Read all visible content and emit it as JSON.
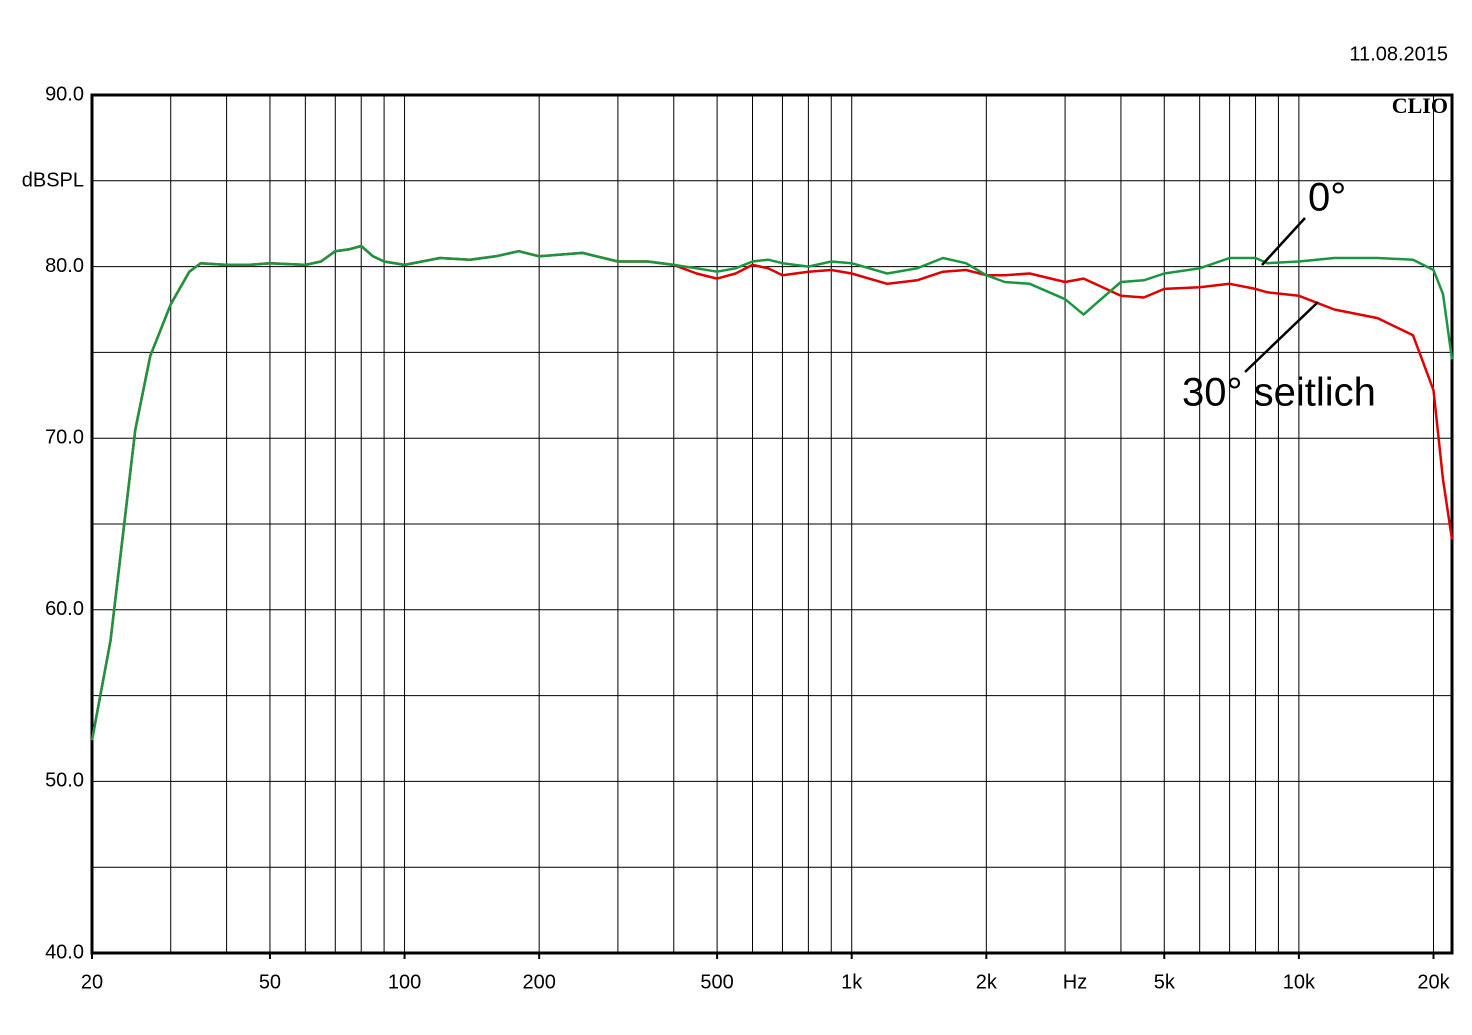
{
  "chart_data": {
    "type": "line",
    "date": "11.08.2015",
    "logo": "CLIO",
    "y_label": "dBSPL",
    "x_label": "Hz",
    "log_x": true,
    "grid": true,
    "xlim": [
      20,
      22000
    ],
    "ylim": [
      40,
      90
    ],
    "xticks": [
      20,
      50,
      100,
      200,
      500,
      {
        "value": 1000,
        "label": "1k"
      },
      {
        "value": 2000,
        "label": "2k"
      },
      {
        "value": 5000,
        "label": "5k"
      },
      {
        "value": 10000,
        "label": "10k"
      },
      {
        "value": 20000,
        "label": "20k"
      }
    ],
    "xminor": [
      30,
      40,
      60,
      70,
      80,
      90,
      300,
      400,
      600,
      700,
      800,
      900,
      3000,
      4000,
      6000,
      7000,
      8000,
      9000
    ],
    "yticks": [
      {
        "value": 40,
        "label": "40.0"
      },
      {
        "value": 50,
        "label": "50.0"
      },
      {
        "value": 60,
        "label": "60.0"
      },
      {
        "value": 70,
        "label": "70.0"
      },
      {
        "value": 80,
        "label": "80.0"
      },
      {
        "value": 90,
        "label": "90.0"
      }
    ],
    "yminor": [
      45,
      55,
      65,
      75,
      85
    ],
    "x": [
      20,
      22,
      25,
      27,
      30,
      33,
      35,
      40,
      45,
      50,
      60,
      65,
      70,
      75,
      80,
      85,
      90,
      100,
      120,
      140,
      160,
      180,
      200,
      250,
      300,
      350,
      400,
      450,
      500,
      550,
      600,
      650,
      700,
      800,
      900,
      1000,
      1200,
      1400,
      1600,
      1800,
      2000,
      2200,
      2500,
      3000,
      3300,
      3500,
      4000,
      4500,
      5000,
      6000,
      7000,
      8000,
      8500,
      10000,
      12000,
      15000,
      18000,
      20000,
      21000,
      22000
    ],
    "series": [
      {
        "name": "30° seitlich",
        "color": "#e00000",
        "values": [
          52.4,
          58.2,
          70.5,
          74.8,
          77.8,
          79.7,
          80.2,
          80.1,
          80.1,
          80.2,
          80.1,
          80.3,
          80.9,
          81.0,
          81.2,
          80.6,
          80.3,
          80.1,
          80.5,
          80.4,
          80.6,
          80.9,
          80.6,
          80.8,
          80.3,
          80.3,
          80.1,
          79.6,
          79.3,
          79.6,
          80.1,
          79.9,
          79.5,
          79.7,
          79.8,
          79.6,
          79.0,
          79.2,
          79.7,
          79.8,
          79.5,
          79.5,
          79.6,
          79.1,
          79.3,
          79.0,
          78.3,
          78.2,
          78.7,
          78.8,
          79.0,
          78.7,
          78.5,
          78.3,
          77.5,
          77.0,
          76.0,
          72.8,
          67.6,
          64.1
        ]
      },
      {
        "name": "0°",
        "color": "#1a9641",
        "values": [
          52.4,
          58.2,
          70.5,
          74.8,
          77.8,
          79.7,
          80.2,
          80.1,
          80.1,
          80.2,
          80.1,
          80.3,
          80.9,
          81.0,
          81.2,
          80.6,
          80.3,
          80.1,
          80.5,
          80.4,
          80.6,
          80.9,
          80.6,
          80.8,
          80.3,
          80.3,
          80.1,
          79.9,
          79.7,
          79.9,
          80.3,
          80.4,
          80.2,
          80.0,
          80.3,
          80.2,
          79.6,
          79.9,
          80.5,
          80.2,
          79.5,
          79.1,
          79.0,
          78.1,
          77.2,
          77.8,
          79.1,
          79.2,
          79.6,
          79.9,
          80.5,
          80.5,
          80.2,
          80.3,
          80.5,
          80.5,
          80.4,
          79.8,
          78.4,
          74.6
        ]
      }
    ]
  }
}
